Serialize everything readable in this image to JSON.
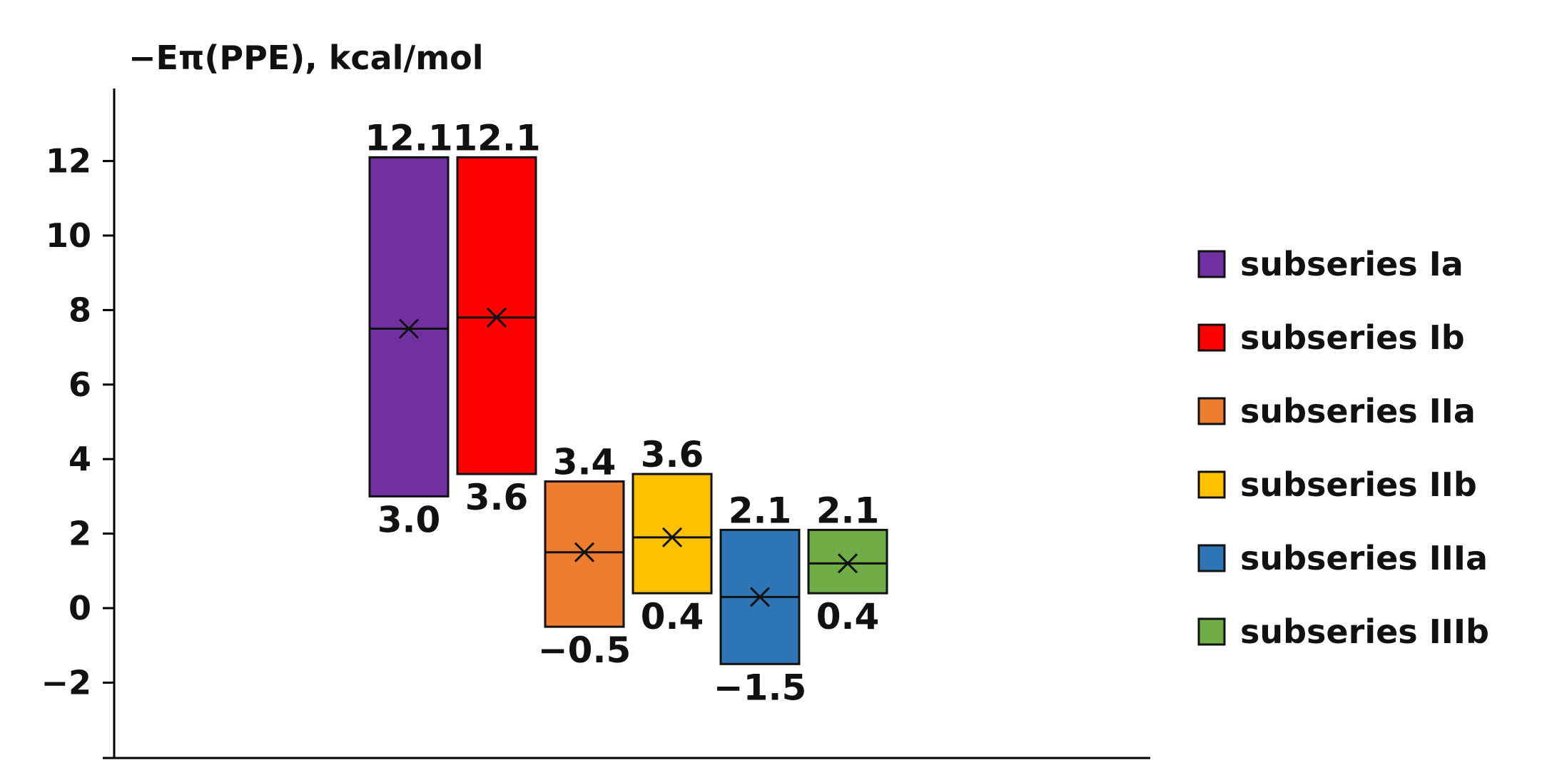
{
  "chart_data": {
    "type": "box",
    "ylabel": "−Eπ(PPE), kcal/mol",
    "ylim": [
      -4,
      14
    ],
    "yticks": [
      -2,
      0,
      2,
      4,
      6,
      8,
      10,
      12
    ],
    "ytick_labels": [
      "−2",
      "0",
      "2",
      "4",
      "6",
      "8",
      "10",
      "12"
    ],
    "legend_position": "right",
    "grid": false,
    "series": [
      {
        "name": "subseries Ia",
        "color": "#7030A0",
        "min": 3.0,
        "max": 12.1,
        "median": 7.5,
        "mean": 7.5,
        "min_label": "3.0",
        "max_label": "12.1"
      },
      {
        "name": "subseries Ib",
        "color": "#FF0000",
        "min": 3.6,
        "max": 12.1,
        "median": 7.8,
        "mean": 7.8,
        "min_label": "3.6",
        "max_label": "12.1"
      },
      {
        "name": "subseries IIa",
        "color": "#ED7D31",
        "min": -0.5,
        "max": 3.4,
        "median": 1.5,
        "mean": 1.5,
        "min_label": "−0.5",
        "max_label": "3.4"
      },
      {
        "name": "subseries IIb",
        "color": "#FFC000",
        "min": 0.4,
        "max": 3.6,
        "median": 1.9,
        "mean": 1.9,
        "min_label": "0.4",
        "max_label": "3.6"
      },
      {
        "name": "subseries IIIa",
        "color": "#2E75B6",
        "min": -1.5,
        "max": 2.1,
        "median": 0.3,
        "mean": 0.3,
        "min_label": "−1.5",
        "max_label": "2.1"
      },
      {
        "name": "subseries IIIb",
        "color": "#70AD47",
        "min": 0.4,
        "max": 2.1,
        "median": 1.2,
        "mean": 1.2,
        "min_label": "0.4",
        "max_label": "2.1"
      }
    ]
  }
}
